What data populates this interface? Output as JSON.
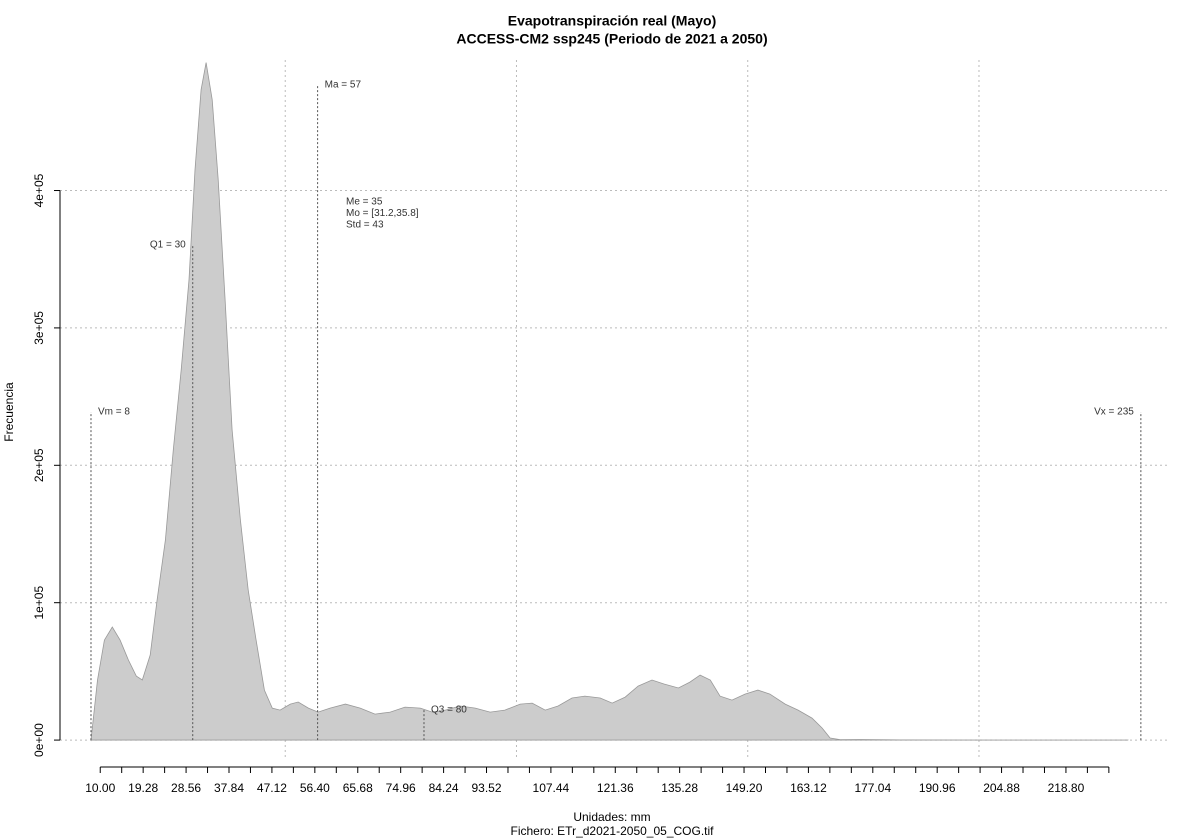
{
  "chart_data": {
    "type": "area",
    "title": "Evapotranspiración real (Mayo)",
    "subtitle": "ACCESS-CM2 ssp245 (Periodo de 2021 a 2050)",
    "x_label": "Unidades: mm",
    "caption": "Fichero: ETr_d2021-2050_05_COG.tif",
    "y_label": "Frecuencia",
    "color": "#cccccc",
    "x": [
      8,
      9.4,
      10.9,
      12.6,
      14.3,
      16.1,
      17.8,
      19.1,
      20.8,
      22.3,
      24.1,
      25.8,
      27.5,
      29.2,
      30.5,
      31.8,
      32.9,
      34.2,
      35.5,
      37.0,
      38.5,
      40.3,
      42.0,
      43.7,
      45.5,
      47.2,
      48.9,
      51.1,
      52.8,
      55.0,
      57.1,
      59.7,
      63.0,
      66.2,
      69.4,
      72.7,
      75.9,
      79.2,
      81.8,
      84.6,
      87.8,
      91.1,
      94.3,
      97.5,
      100.8,
      103.4,
      106.2,
      109.0,
      112.0,
      114.8,
      118.1,
      120.7,
      123.5,
      126.3,
      129.3,
      131.9,
      135.0,
      137.5,
      139.7,
      141.9,
      144.0,
      146.6,
      149.4,
      152.2,
      154.8,
      158.1,
      160.9,
      163.9,
      166.1,
      167.8,
      170.0,
      174.3,
      183.0,
      204.5,
      232.2
    ],
    "values": [
      0,
      43700,
      72800,
      82300,
      72800,
      58300,
      46600,
      43700,
      61900,
      102000,
      145700,
      211200,
      269500,
      335000,
      415100,
      473400,
      493100,
      466100,
      407900,
      320500,
      225800,
      160200,
      109200,
      72800,
      36400,
      23300,
      21800,
      26200,
      27700,
      23300,
      20400,
      23300,
      26200,
      23300,
      18900,
      20400,
      24000,
      23300,
      20400,
      21800,
      24800,
      23300,
      20400,
      21800,
      26200,
      26900,
      21800,
      24800,
      30600,
      32000,
      30600,
      26900,
      31300,
      39300,
      43700,
      40800,
      37900,
      42200,
      47300,
      43700,
      32000,
      29100,
      33500,
      36400,
      33500,
      26200,
      21800,
      16000,
      8700,
      1500,
      300,
      400,
      100,
      50,
      0
    ],
    "xlim": [
      1.3,
      241.3
    ],
    "ylim": [
      -14500,
      495000
    ],
    "xticks": [
      {
        "value": 10,
        "label": "10.00"
      },
      {
        "value": 19.28,
        "label": "19.28"
      },
      {
        "value": 28.56,
        "label": "28.56"
      },
      {
        "value": 37.84,
        "label": "37.84"
      },
      {
        "value": 47.12,
        "label": "47.12"
      },
      {
        "value": 56.4,
        "label": "56.40"
      },
      {
        "value": 65.68,
        "label": "65.68"
      },
      {
        "value": 74.96,
        "label": "74.96"
      },
      {
        "value": 84.24,
        "label": "84.24"
      },
      {
        "value": 93.52,
        "label": "93.52"
      },
      {
        "value": 107.44,
        "label": "107.44"
      },
      {
        "value": 121.36,
        "label": "121.36"
      },
      {
        "value": 135.28,
        "label": "135.28"
      },
      {
        "value": 149.2,
        "label": "149.20"
      },
      {
        "value": 163.12,
        "label": "163.12"
      },
      {
        "value": 177.04,
        "label": "177.04"
      },
      {
        "value": 190.96,
        "label": "190.96"
      },
      {
        "value": 204.88,
        "label": "204.88"
      },
      {
        "value": 218.8,
        "label": "218.80"
      }
    ],
    "xminorticks": [
      14.64,
      23.92,
      33.2,
      42.48,
      51.76,
      61.04,
      70.32,
      79.6,
      88.88,
      98.16,
      102.8,
      112.08,
      116.72,
      126,
      130.64,
      139.92,
      144.56,
      153.84,
      158.48,
      167.76,
      172.4,
      181.68,
      186.32,
      195.6,
      200.24,
      209.52,
      214.16,
      223.44,
      228.08
    ],
    "yticks": [
      {
        "value": 0,
        "label": "0e+00"
      },
      {
        "value": 100000,
        "label": "1e+05"
      },
      {
        "value": 200000,
        "label": "2e+05"
      },
      {
        "value": 300000,
        "label": "3e+05"
      },
      {
        "value": 400000,
        "label": "4e+05"
      }
    ],
    "xgrid": [
      50,
      100,
      150,
      200
    ],
    "grid": true,
    "annotations": [
      {
        "label": "Vm = 8",
        "x": 8
      },
      {
        "label": "Q1 = 30",
        "x": 30
      },
      {
        "label": "Ma = 57",
        "x": 57
      },
      {
        "label": "Q3 = 80",
        "x": 80
      },
      {
        "label": "Vx = 235",
        "x": 235
      }
    ],
    "stats": [
      "Me = 35",
      "Mo = [31.2,35.8]",
      "Std = 43"
    ]
  }
}
